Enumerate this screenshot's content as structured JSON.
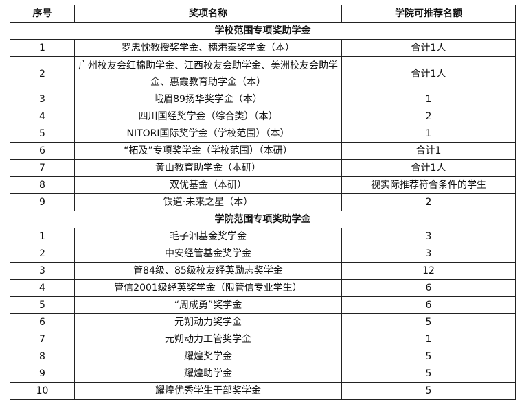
{
  "headers": [
    "序号",
    "奖项名称",
    "学院可推荐名额"
  ],
  "sections": [
    {
      "title": "学校范围专项奖助学金",
      "rows": [
        {
          "no": "1",
          "name": "罗忠忱教授奖学金、穗港泰奖学金（本）",
          "quota": "合计1人"
        },
        {
          "no": "2",
          "name": "广州校友会红棉助学金、江西校友会助学金、美洲校友会助学金、惠霞教育助学金（本）",
          "quota": "合计1人"
        },
        {
          "no": "3",
          "name": "峨眉89扬华奖学金（本）",
          "quota": "1"
        },
        {
          "no": "4",
          "name": "四川国经奖学金（综合类）（本）",
          "quota": "2"
        },
        {
          "no": "5",
          "name": "NITORI国际奖学金（学校范围）（本）",
          "quota": "1"
        },
        {
          "no": "6",
          "name": "“拓及”专项奖学金（学校范围）（本研）",
          "quota": "合计1"
        },
        {
          "no": "7",
          "name": "黄山教育助学金（本研）",
          "quota": "合计1人"
        },
        {
          "no": "8",
          "name": "双优基金（本研）",
          "quota": "视实际推荐符合条件的学生"
        },
        {
          "no": "9",
          "name": "铁道·未来之星（本）",
          "quota": "2"
        }
      ]
    },
    {
      "title": "学院范围专项奖助学金",
      "rows": [
        {
          "no": "1",
          "name": "毛子洄基金奖学金",
          "quota": "3"
        },
        {
          "no": "2",
          "name": "中安经管基金奖学金",
          "quota": "3"
        },
        {
          "no": "3",
          "name": "管84级、85级校友经英励志奖学金",
          "quota": "12"
        },
        {
          "no": "4",
          "name": "管信2001级经英奖学金（限管信专业学生）",
          "quota": "6"
        },
        {
          "no": "5",
          "name": "“周成勇”奖学金",
          "quota": "6"
        },
        {
          "no": "6",
          "name": "元朔动力奖学金",
          "quota": "5"
        },
        {
          "no": "7",
          "name": "元朔动力工管奖学金",
          "quota": "1"
        },
        {
          "no": "8",
          "name": "耀煌奖学金",
          "quota": "5"
        },
        {
          "no": "9",
          "name": "耀煌助学金",
          "quota": "5"
        },
        {
          "no": "10",
          "name": "耀煌优秀学生干部奖学金",
          "quota": "5"
        }
      ]
    }
  ]
}
